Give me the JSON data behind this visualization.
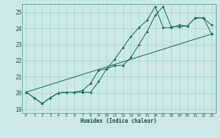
{
  "xlabel": "Humidex (Indice chaleur)",
  "bg_color": "#cce8e8",
  "grid_color": "#aad4d4",
  "line_color": "#1a7060",
  "xlim": [
    -0.5,
    23.5
  ],
  "ylim": [
    18.75,
    25.5
  ],
  "xticks": [
    0,
    1,
    2,
    3,
    4,
    5,
    6,
    7,
    8,
    9,
    10,
    11,
    12,
    13,
    14,
    15,
    16,
    17,
    18,
    19,
    20,
    21,
    22,
    23
  ],
  "yticks": [
    19,
    20,
    21,
    22,
    23,
    24,
    25
  ],
  "line1_x": [
    0,
    1,
    2,
    3,
    4,
    5,
    6,
    7,
    8,
    9,
    10,
    11,
    12,
    13,
    14,
    15,
    16,
    17,
    18,
    19,
    20,
    21,
    22,
    23
  ],
  "line1_y": [
    20.05,
    19.7,
    19.35,
    19.7,
    20.0,
    20.05,
    20.05,
    20.05,
    20.05,
    20.7,
    21.5,
    21.7,
    21.7,
    22.2,
    23.0,
    23.8,
    24.8,
    25.35,
    24.1,
    24.1,
    24.15,
    24.65,
    24.65,
    24.2
  ],
  "line2_x": [
    0,
    1,
    2,
    3,
    4,
    5,
    6,
    7,
    8,
    9,
    10,
    11,
    12,
    13,
    14,
    15,
    16,
    17,
    18,
    19,
    20,
    21,
    22,
    23
  ],
  "line2_y": [
    20.05,
    19.7,
    19.35,
    19.7,
    20.0,
    20.05,
    20.05,
    20.15,
    20.6,
    21.4,
    21.5,
    22.1,
    22.8,
    23.5,
    24.05,
    24.5,
    25.35,
    24.05,
    24.05,
    24.2,
    24.15,
    24.65,
    24.65,
    23.65
  ],
  "line3_x": [
    0,
    23
  ],
  "line3_y": [
    20.05,
    23.65
  ]
}
